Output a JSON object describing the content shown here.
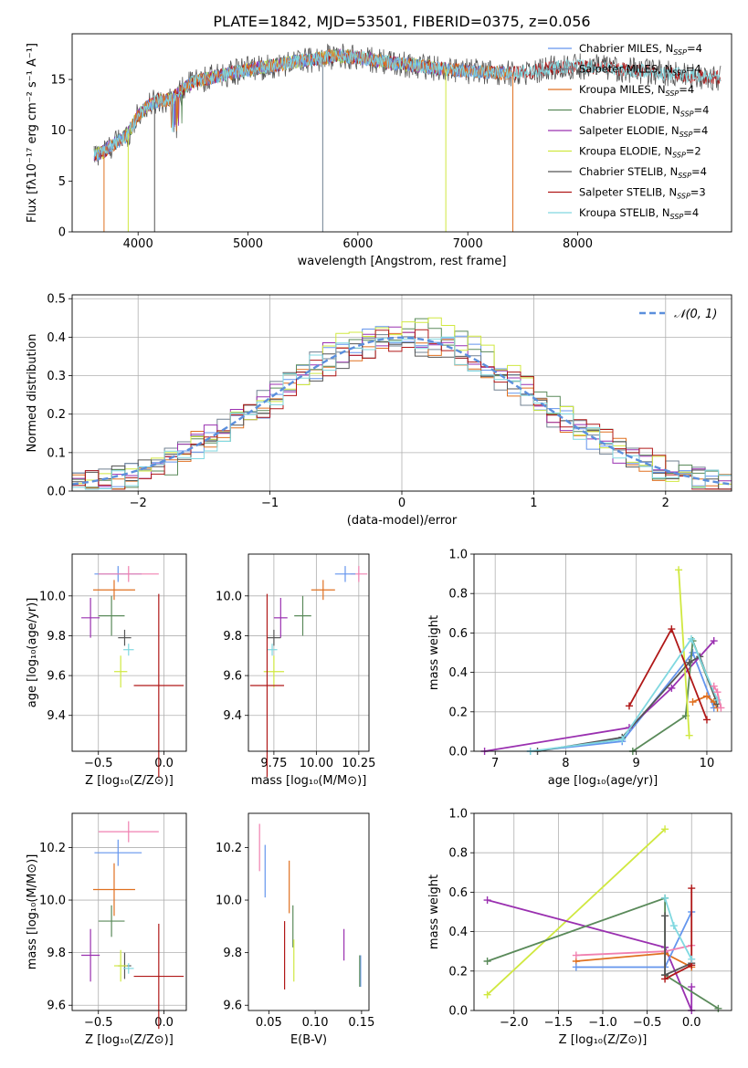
{
  "figure": {
    "title": "PLATE=1842, MJD=53501, FIBERID=0375, z=0.056"
  },
  "colors": {
    "Chabrier MILES": "#6495ed",
    "Salpeter MILES": "#708090",
    "Kroupa MILES": "#e07020",
    "Chabrier ELODIE": "#5a8a5a",
    "Salpeter ELODIE": "#9a30b0",
    "Kroupa ELODIE": "#d0e840",
    "Chabrier STELIB": "#555555",
    "Salpeter STELIB": "#b01818",
    "Kroupa STELIB": "#80d8e0",
    "pink": "#f080b0",
    "gauss": "#5b8fdc"
  },
  "chart_data": [
    {
      "id": "spectrum",
      "type": "line",
      "title": "PLATE=1842, MJD=53501, FIBERID=0375, z=0.056",
      "xlabel": "wavelength [Angstrom, rest frame]",
      "ylabel": "Flux [fλ10⁻¹⁷ erg cm⁻² s⁻¹ A⁻¹]",
      "xlim": [
        3400,
        9400
      ],
      "ylim": [
        0,
        19.5
      ],
      "xticks": [
        4000,
        5000,
        6000,
        7000,
        8000
      ],
      "yticks": [
        0,
        5,
        10,
        15
      ],
      "grid": false,
      "legend_position": "top-right",
      "legend": [
        {
          "name": "Chabrier MILES",
          "label": "Chabrier MILES, N",
          "sub": "SSP",
          "tail": "=4"
        },
        {
          "name": "Salpeter MILES",
          "label": "Salpeter MILES, N",
          "sub": "SSP",
          "tail": "=4"
        },
        {
          "name": "Kroupa MILES",
          "label": "Kroupa MILES, N",
          "sub": "SSP",
          "tail": "=4"
        },
        {
          "name": "Chabrier ELODIE",
          "label": "Chabrier ELODIE, N",
          "sub": "SSP",
          "tail": "=4"
        },
        {
          "name": "Salpeter ELODIE",
          "label": "Salpeter ELODIE, N",
          "sub": "SSP",
          "tail": "=4"
        },
        {
          "name": "Kroupa ELODIE",
          "label": "Kroupa ELODIE, N",
          "sub": "SSP",
          "tail": "=2"
        },
        {
          "name": "Chabrier STELIB",
          "label": "Chabrier STELIB, N",
          "sub": "SSP",
          "tail": "=4"
        },
        {
          "name": "Salpeter STELIB",
          "label": "Salpeter STELIB, N",
          "sub": "SSP",
          "tail": "=3"
        },
        {
          "name": "Kroupa STELIB",
          "label": "Kroupa STELIB, N",
          "sub": "SSP",
          "tail": "=4"
        }
      ],
      "continuum_x": [
        3600,
        3700,
        3800,
        3900,
        4000,
        4100,
        4200,
        4300,
        4400,
        4500,
        4600,
        4800,
        5000,
        5200,
        5400,
        5600,
        5800,
        6000,
        6200,
        6400,
        6600,
        6800,
        7000,
        7200,
        7400,
        7600,
        7800,
        8000,
        8200,
        8400,
        8600,
        8800,
        9000,
        9200
      ],
      "continuum_y": [
        7.5,
        8.0,
        8.8,
        9.5,
        11.5,
        12.5,
        13.0,
        13.0,
        14.0,
        14.8,
        15.0,
        15.5,
        16.0,
        16.3,
        16.7,
        17.0,
        17.3,
        17.2,
        16.8,
        16.5,
        16.3,
        16.0,
        15.8,
        15.7,
        15.6,
        15.8,
        16.2,
        16.3,
        16.2,
        16.0,
        15.8,
        15.6,
        15.4,
        15.2
      ],
      "series_end_x": {
        "Chabrier MILES": 7400,
        "Salpeter MILES": 7400,
        "Kroupa MILES": 7400,
        "Chabrier ELODIE": 6800,
        "Salpeter ELODIE": 6800,
        "Kroupa ELODIE": 6800,
        "Chabrier STELIB": 9300,
        "Salpeter STELIB": 9300,
        "Kroupa STELIB": 9300
      },
      "dropouts": [
        {
          "series": "Kroupa MILES",
          "x": 3690
        },
        {
          "series": "Kroupa ELODIE",
          "x": 3910
        },
        {
          "series": "Chabrier STELIB",
          "x": 4150
        },
        {
          "series": "Salpeter MILES",
          "x": 5680
        },
        {
          "series": "Kroupa ELODIE",
          "x": 6800
        },
        {
          "series": "Kroupa MILES",
          "x": 7410
        }
      ]
    },
    {
      "id": "residuals",
      "type": "line",
      "xlabel": "(data-model)/error",
      "ylabel": "Normed distribution",
      "xlim": [
        -2.5,
        2.5
      ],
      "ylim": [
        0,
        0.51
      ],
      "xticks": [
        -2,
        -1,
        0,
        1,
        2
      ],
      "yticks": [
        0.0,
        0.1,
        0.2,
        0.3,
        0.4,
        0.5
      ],
      "grid": true,
      "legend_position": "top-right",
      "legend": [
        {
          "name": "gauss",
          "label": "𝒩(0, 1)"
        }
      ],
      "bin_width": 0.1,
      "series": [
        {
          "name": "Chabrier MILES",
          "mean": 0.02,
          "sd": 0.98,
          "amp": 1.0
        },
        {
          "name": "Salpeter MILES",
          "mean": -0.03,
          "sd": 1.0,
          "amp": 1.0
        },
        {
          "name": "Kroupa MILES",
          "mean": 0.0,
          "sd": 1.02,
          "amp": 0.99
        },
        {
          "name": "Chabrier ELODIE",
          "mean": 0.05,
          "sd": 0.97,
          "amp": 1.01
        },
        {
          "name": "Salpeter ELODIE",
          "mean": -0.05,
          "sd": 1.0,
          "amp": 1.0
        },
        {
          "name": "Kroupa ELODIE",
          "mean": 0.03,
          "sd": 0.95,
          "amp": 1.02
        },
        {
          "name": "Chabrier STELIB",
          "mean": -0.02,
          "sd": 1.03,
          "amp": 0.98
        },
        {
          "name": "Salpeter STELIB",
          "mean": 0.04,
          "sd": 1.01,
          "amp": 1.0
        },
        {
          "name": "Kroupa STELIB",
          "mean": 0.0,
          "sd": 0.99,
          "amp": 1.0
        }
      ]
    },
    {
      "id": "z-age",
      "type": "scatter",
      "xlabel": "Z [log₁₀(Z/Z⊙)]",
      "ylabel": "age  [log₁₀(age/yr)]",
      "xlim": [
        -0.7,
        0.17
      ],
      "ylim": [
        9.22,
        10.21
      ],
      "xticks": [
        -0.5,
        0.0
      ],
      "xtick_labels": [
        "−0.5",
        "0.0"
      ],
      "yticks": [
        9.4,
        9.6,
        9.8,
        10.0
      ],
      "ytick_labels": [
        "9.4",
        "9.6",
        "9.8",
        "10.0"
      ],
      "grid": true,
      "points": [
        {
          "c": "Chabrier MILES",
          "x": -0.35,
          "y": 10.11,
          "ex": 0.18,
          "ey": 0.04
        },
        {
          "c": "pink",
          "x": -0.27,
          "y": 10.11,
          "ex": 0.23,
          "ey": 0.04
        },
        {
          "c": "Kroupa MILES",
          "x": -0.38,
          "y": 10.03,
          "ex": 0.16,
          "ey": 0.05
        },
        {
          "c": "Chabrier ELODIE",
          "x": -0.4,
          "y": 9.9,
          "ex": 0.1,
          "ey": 0.1
        },
        {
          "c": "Salpeter ELODIE",
          "x": -0.56,
          "y": 9.89,
          "ex": 0.07,
          "ey": 0.1
        },
        {
          "c": "Chabrier STELIB",
          "x": -0.3,
          "y": 9.79,
          "ex": 0.05,
          "ey": 0.04
        },
        {
          "c": "Kroupa STELIB",
          "x": -0.27,
          "y": 9.73,
          "ex": 0.04,
          "ey": 0.03
        },
        {
          "c": "Kroupa ELODIE",
          "x": -0.33,
          "y": 9.62,
          "ex": 0.05,
          "ey": 0.08
        },
        {
          "c": "Salpeter STELIB",
          "x": -0.04,
          "y": 9.55,
          "ex": 0.19,
          "ey": 0.46
        }
      ]
    },
    {
      "id": "mass-age",
      "type": "scatter",
      "xlabel": "mass [log₁₀(M/M⊙)]",
      "ylabel": "",
      "xlim": [
        9.6,
        10.31
      ],
      "ylim": [
        9.22,
        10.21
      ],
      "xticks": [
        9.75,
        10.0,
        10.25
      ],
      "xtick_labels": [
        "9.75",
        "10.00",
        "10.25"
      ],
      "yticks": [
        9.4,
        9.6,
        9.8,
        10.0
      ],
      "ytick_labels": [
        "9.4",
        "9.6",
        "9.8",
        "10.0"
      ],
      "grid": true,
      "points": [
        {
          "c": "pink",
          "x": 10.25,
          "y": 10.11,
          "ex": 0.05,
          "ey": 0.04
        },
        {
          "c": "Chabrier MILES",
          "x": 10.17,
          "y": 10.11,
          "ex": 0.06,
          "ey": 0.04
        },
        {
          "c": "Kroupa MILES",
          "x": 10.04,
          "y": 10.03,
          "ex": 0.07,
          "ey": 0.05
        },
        {
          "c": "Chabrier ELODIE",
          "x": 9.92,
          "y": 9.9,
          "ex": 0.05,
          "ey": 0.1
        },
        {
          "c": "Salpeter ELODIE",
          "x": 9.79,
          "y": 9.89,
          "ex": 0.04,
          "ey": 0.1
        },
        {
          "c": "Chabrier STELIB",
          "x": 9.75,
          "y": 9.79,
          "ex": 0.04,
          "ey": 0.04
        },
        {
          "c": "Kroupa STELIB",
          "x": 9.74,
          "y": 9.73,
          "ex": 0.03,
          "ey": 0.03
        },
        {
          "c": "Kroupa ELODIE",
          "x": 9.75,
          "y": 9.62,
          "ex": 0.06,
          "ey": 0.08
        },
        {
          "c": "Salpeter STELIB",
          "x": 9.71,
          "y": 9.55,
          "ex": 0.1,
          "ey": 0.46
        }
      ]
    },
    {
      "id": "age-weight",
      "type": "line",
      "xlabel": "age  [log₁₀(age/yr)]",
      "ylabel": "mass weight",
      "xlim": [
        6.7,
        10.35
      ],
      "ylim": [
        0,
        1.0
      ],
      "xticks": [
        7,
        8,
        9,
        10
      ],
      "xtick_labels": [
        "7",
        "8",
        "9",
        "10"
      ],
      "yticks": [
        0.0,
        0.2,
        0.4,
        0.6,
        0.8,
        1.0
      ],
      "ytick_labels": [
        "0.0",
        "0.2",
        "0.4",
        "0.6",
        "0.8",
        "1.0"
      ],
      "grid": true,
      "series": [
        {
          "c": "Chabrier MILES",
          "x": [
            7.5,
            8.8,
            9.8,
            10.1
          ],
          "y": [
            0.0,
            0.05,
            0.5,
            0.22
          ]
        },
        {
          "c": "Kroupa MILES",
          "x": [
            9.8,
            10.0,
            10.1,
            10.15
          ],
          "y": [
            0.25,
            0.28,
            0.25,
            0.22
          ]
        },
        {
          "c": "Salpeter ELODIE",
          "x": [
            6.85,
            8.9,
            9.5,
            10.1
          ],
          "y": [
            0.0,
            0.12,
            0.32,
            0.56
          ]
        },
        {
          "c": "Chabrier ELODIE",
          "x": [
            8.95,
            9.7,
            9.8,
            10.15
          ],
          "y": [
            0.0,
            0.18,
            0.56,
            0.24
          ]
        },
        {
          "c": "Kroupa ELODIE",
          "x": [
            9.6,
            9.75
          ],
          "y": [
            0.92,
            0.08
          ]
        },
        {
          "c": "Chabrier STELIB",
          "x": [
            7.6,
            8.8,
            9.75,
            9.9,
            10.15
          ],
          "y": [
            0.0,
            0.07,
            0.45,
            0.48,
            0.24
          ]
        },
        {
          "c": "Salpeter STELIB",
          "x": [
            8.9,
            9.5,
            10.0
          ],
          "y": [
            0.23,
            0.62,
            0.16
          ]
        },
        {
          "c": "Kroupa STELIB",
          "x": [
            7.5,
            8.8,
            9.78,
            10.15
          ],
          "y": [
            0.0,
            0.06,
            0.57,
            0.26
          ]
        },
        {
          "c": "pink",
          "x": [
            10.1,
            10.15,
            10.2
          ],
          "y": [
            0.33,
            0.3,
            0.22
          ]
        }
      ]
    },
    {
      "id": "z-mass",
      "type": "scatter",
      "xlabel": "Z [log₁₀(Z/Z⊙)]",
      "ylabel": "mass [log₁₀(M/M⊙)]",
      "xlim": [
        -0.7,
        0.17
      ],
      "ylim": [
        9.58,
        10.33
      ],
      "xticks": [
        -0.5,
        0.0
      ],
      "xtick_labels": [
        "−0.5",
        "0.0"
      ],
      "yticks": [
        9.6,
        9.8,
        10.0,
        10.2
      ],
      "ytick_labels": [
        "9.6",
        "9.8",
        "10.0",
        "10.2"
      ],
      "grid": true,
      "points": [
        {
          "c": "pink",
          "x": -0.27,
          "y": 10.26,
          "ex": 0.23,
          "ey": 0.04
        },
        {
          "c": "Chabrier MILES",
          "x": -0.35,
          "y": 10.18,
          "ex": 0.18,
          "ey": 0.05
        },
        {
          "c": "Kroupa MILES",
          "x": -0.38,
          "y": 10.04,
          "ex": 0.16,
          "ey": 0.1
        },
        {
          "c": "Chabrier ELODIE",
          "x": -0.4,
          "y": 9.92,
          "ex": 0.1,
          "ey": 0.06
        },
        {
          "c": "Salpeter ELODIE",
          "x": -0.56,
          "y": 9.79,
          "ex": 0.07,
          "ey": 0.1
        },
        {
          "c": "Chabrier STELIB",
          "x": -0.3,
          "y": 9.75,
          "ex": 0.05,
          "ey": 0.05
        },
        {
          "c": "Kroupa STELIB",
          "x": -0.27,
          "y": 9.74,
          "ex": 0.04,
          "ey": 0.02
        },
        {
          "c": "Kroupa ELODIE",
          "x": -0.33,
          "y": 9.75,
          "ex": 0.05,
          "ey": 0.06
        },
        {
          "c": "Salpeter STELIB",
          "x": -0.04,
          "y": 9.71,
          "ex": 0.19,
          "ey": 0.2
        }
      ]
    },
    {
      "id": "ebv-mass",
      "type": "scatter",
      "xlabel": "E(B-V)",
      "ylabel": "",
      "xlim": [
        0.028,
        0.158
      ],
      "ylim": [
        9.58,
        10.33
      ],
      "xticks": [
        0.05,
        0.1,
        0.15
      ],
      "xtick_labels": [
        "0.05",
        "0.10",
        "0.15"
      ],
      "yticks": [
        9.6,
        9.8,
        10.0,
        10.2
      ],
      "ytick_labels": [
        "9.6",
        "9.8",
        "10.0",
        "10.2"
      ],
      "grid": false,
      "points": [
        {
          "c": "pink",
          "x": 0.04,
          "y": 10.2,
          "ex": 0,
          "ey": 0.09
        },
        {
          "c": "Chabrier MILES",
          "x": 0.046,
          "y": 10.11,
          "ex": 0,
          "ey": 0.1
        },
        {
          "c": "Kroupa MILES",
          "x": 0.072,
          "y": 10.05,
          "ex": 0,
          "ey": 0.1
        },
        {
          "c": "Chabrier ELODIE",
          "x": 0.076,
          "y": 9.9,
          "ex": 0,
          "ey": 0.08
        },
        {
          "c": "Salpeter STELIB",
          "x": 0.067,
          "y": 9.79,
          "ex": 0,
          "ey": 0.13
        },
        {
          "c": "Kroupa ELODIE",
          "x": 0.077,
          "y": 9.77,
          "ex": 0,
          "ey": 0.08
        },
        {
          "c": "Salpeter ELODIE",
          "x": 0.131,
          "y": 9.83,
          "ex": 0,
          "ey": 0.06
        },
        {
          "c": "Chabrier MILES",
          "x": 0.149,
          "y": 9.73,
          "ex": 0,
          "ey": 0.06
        },
        {
          "c": "Chabrier ELODIE",
          "x": 0.148,
          "y": 9.73,
          "ex": 0,
          "ey": 0.06
        }
      ]
    },
    {
      "id": "z-weight",
      "type": "line",
      "xlabel": "Z [log₁₀(Z/Z⊙)]",
      "ylabel": "mass weight",
      "xlim": [
        -2.45,
        0.45
      ],
      "ylim": [
        0,
        1.0
      ],
      "xticks": [
        -2.0,
        -1.5,
        -1.0,
        -0.5,
        0.0
      ],
      "xtick_labels": [
        "−2.0",
        "−1.5",
        "−1.0",
        "−0.5",
        "0.0"
      ],
      "yticks": [
        0.0,
        0.2,
        0.4,
        0.6,
        0.8,
        1.0
      ],
      "ytick_labels": [
        "0.0",
        "0.2",
        "0.4",
        "0.6",
        "0.8",
        "1.0"
      ],
      "grid": true,
      "series": [
        {
          "c": "Kroupa ELODIE",
          "x": [
            -2.3,
            -0.3
          ],
          "y": [
            0.08,
            0.92
          ]
        },
        {
          "c": "Salpeter ELODIE",
          "x": [
            -2.3,
            -0.3,
            0.0,
            0.0
          ],
          "y": [
            0.56,
            0.32,
            0.0,
            0.12
          ]
        },
        {
          "c": "Chabrier ELODIE",
          "x": [
            -2.3,
            -0.3,
            -0.3,
            0.3
          ],
          "y": [
            0.25,
            0.57,
            0.18,
            0.01
          ]
        },
        {
          "c": "Kroupa MILES",
          "x": [
            -1.3,
            -0.3,
            0.0
          ],
          "y": [
            0.25,
            0.29,
            0.22
          ]
        },
        {
          "c": "Chabrier MILES",
          "x": [
            -1.3,
            -0.3,
            0.0
          ],
          "y": [
            0.22,
            0.22,
            0.5
          ]
        },
        {
          "c": "pink",
          "x": [
            -1.3,
            -0.3,
            0.0
          ],
          "y": [
            0.28,
            0.3,
            0.33
          ]
        },
        {
          "c": "Chabrier STELIB",
          "x": [
            -0.3,
            -0.3,
            0.0
          ],
          "y": [
            0.48,
            0.18,
            0.24
          ]
        },
        {
          "c": "Salpeter STELIB",
          "x": [
            -0.3,
            0.0,
            0.0
          ],
          "y": [
            0.16,
            0.23,
            0.62
          ]
        },
        {
          "c": "Kroupa STELIB",
          "x": [
            -0.3,
            -0.2,
            0.0
          ],
          "y": [
            0.57,
            0.43,
            0.26
          ]
        }
      ]
    }
  ]
}
